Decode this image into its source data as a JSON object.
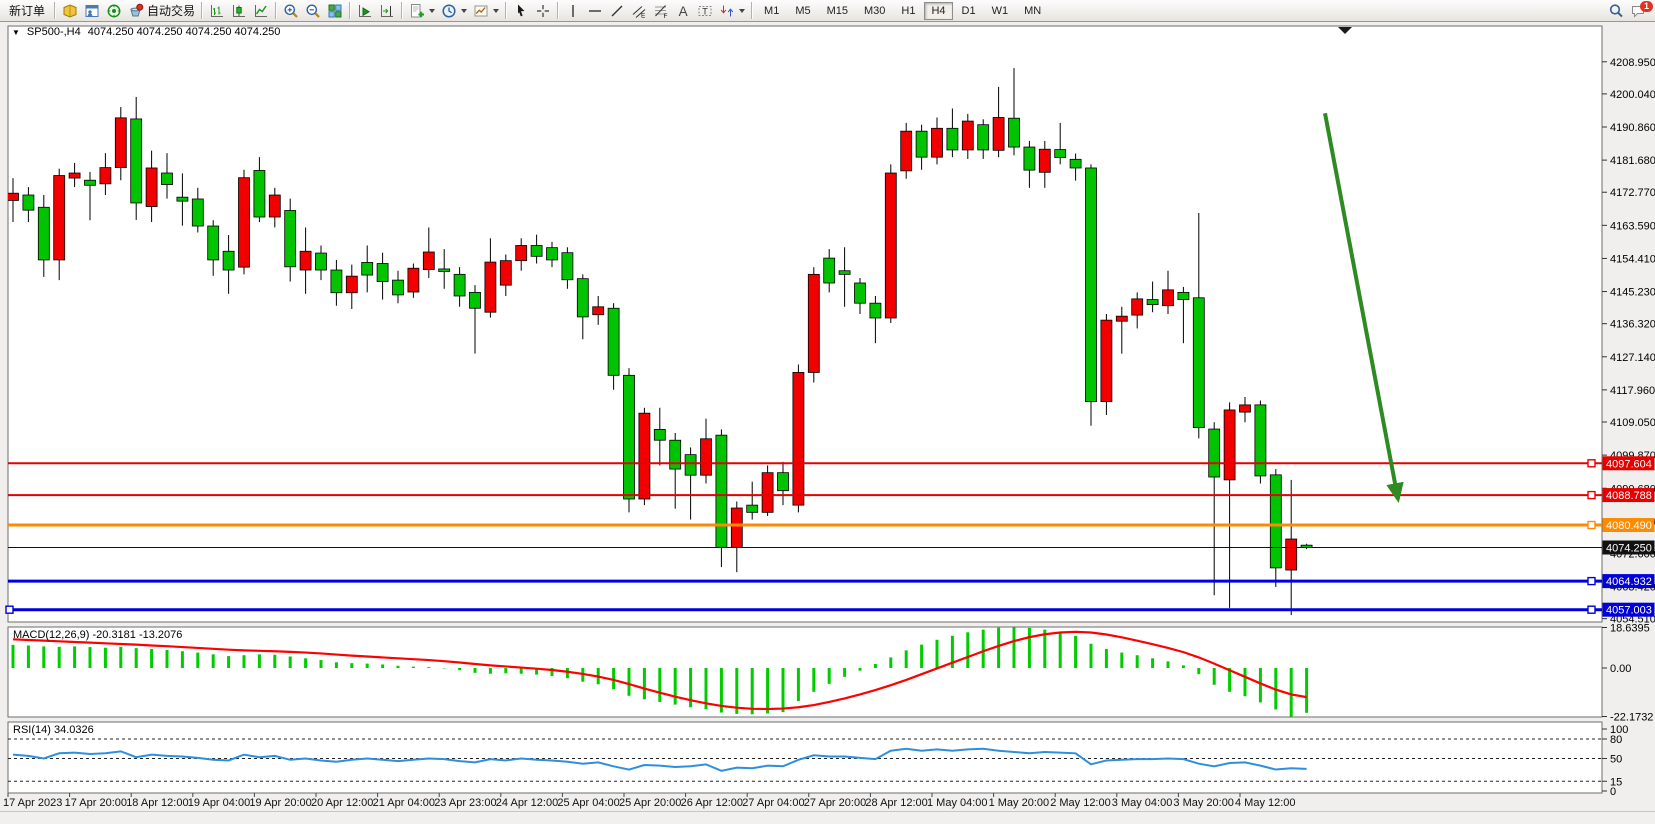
{
  "toolbar": {
    "groups": [
      {
        "items": [
          {
            "kind": "text",
            "name": "new-order-button",
            "label": "新订单"
          }
        ]
      },
      {
        "items": [
          {
            "kind": "icon",
            "name": "market-watch-icon"
          },
          {
            "kind": "icon",
            "name": "data-window-icon"
          },
          {
            "kind": "icon",
            "name": "navigator-icon"
          },
          {
            "kind": "icon-text",
            "name": "auto-trading-button",
            "icon": "auto-trading-icon",
            "label": "自动交易"
          }
        ]
      },
      {
        "items": [
          {
            "kind": "icon",
            "name": "bar-chart-icon"
          },
          {
            "kind": "icon",
            "name": "candlestick-chart-icon"
          },
          {
            "kind": "icon",
            "name": "line-chart-icon"
          }
        ]
      },
      {
        "items": [
          {
            "kind": "icon",
            "name": "zoom-in-icon"
          },
          {
            "kind": "icon",
            "name": "zoom-out-icon"
          },
          {
            "kind": "icon",
            "name": "tile-windows-icon"
          }
        ]
      },
      {
        "items": [
          {
            "kind": "icon",
            "name": "auto-scroll-icon"
          },
          {
            "kind": "icon",
            "name": "chart-shift-icon"
          }
        ]
      },
      {
        "items": [
          {
            "kind": "icon-caret",
            "name": "new-chart-button",
            "icon": "new-chart-icon"
          },
          {
            "kind": "icon-caret",
            "name": "profiles-button",
            "icon": "profiles-icon"
          },
          {
            "kind": "icon-caret",
            "name": "templates-button",
            "icon": "templates-icon"
          }
        ]
      },
      {
        "items": [
          {
            "kind": "icon",
            "name": "cursor-icon"
          },
          {
            "kind": "icon",
            "name": "crosshair-icon"
          }
        ]
      },
      {
        "items": [
          {
            "kind": "icon",
            "name": "vertical-line-icon"
          },
          {
            "kind": "icon",
            "name": "horizontal-line-icon"
          },
          {
            "kind": "icon",
            "name": "trendline-icon"
          },
          {
            "kind": "icon",
            "name": "equidistant-channel-icon"
          },
          {
            "kind": "icon",
            "name": "fibonacci-icon"
          },
          {
            "kind": "icon",
            "name": "text-icon"
          },
          {
            "kind": "icon",
            "name": "text-label-icon"
          },
          {
            "kind": "icon-caret",
            "name": "arrows-button",
            "icon": "arrow-objects-icon"
          }
        ]
      }
    ],
    "timeframes": [
      "M1",
      "M5",
      "M15",
      "M30",
      "H1",
      "H4",
      "D1",
      "W1",
      "MN"
    ],
    "active_timeframe": "H4",
    "right_items": [
      {
        "kind": "icon",
        "name": "search-icon"
      },
      {
        "kind": "icon-badge",
        "name": "chat-icon",
        "badge": "1"
      }
    ]
  },
  "chart": {
    "title_symbol": "SP500-,H4",
    "title_ohlc": "4074.250 4074.250 4074.250 4074.250"
  },
  "price_axis": {
    "ticks": [
      "4208.950",
      "4200.040",
      "4190.860",
      "4181.680",
      "4172.770",
      "4163.590",
      "4154.410",
      "4145.230",
      "4136.320",
      "4127.140",
      "4117.960",
      "4109.050",
      "4099.870",
      "4090.680",
      "4081.500",
      "4072.600",
      "4063.420",
      "4054.510"
    ]
  },
  "lines": [
    {
      "label": "4097.604",
      "value": 4097.604,
      "color": "#e60000",
      "width": 2,
      "marker": "right"
    },
    {
      "label": "4088.788",
      "value": 4088.788,
      "color": "#e60000",
      "width": 2,
      "marker": "right"
    },
    {
      "label": "4080.490",
      "value": 4080.49,
      "color": "#ff8a00",
      "width": 3,
      "marker": "right"
    },
    {
      "label": "4074.250",
      "value": 4074.25,
      "color": "#111111",
      "width": 1,
      "marker": "none"
    },
    {
      "label": "4064.932",
      "value": 4064.932,
      "color": "#0000dd",
      "width": 3,
      "marker": "right"
    },
    {
      "label": "4057.003",
      "value": 4057.003,
      "color": "#0000dd",
      "width": 3,
      "marker": "both"
    }
  ],
  "time_axis": {
    "labels": [
      "17 Apr 2023",
      "17 Apr 20:00",
      "18 Apr 12:00",
      "19 Apr 04:00",
      "19 Apr 20:00",
      "20 Apr 12:00",
      "21 Apr 04:00",
      "23 Apr 23:00",
      "24 Apr 12:00",
      "25 Apr 04:00",
      "25 Apr 20:00",
      "26 Apr 12:00",
      "27 Apr 04:00",
      "27 Apr 20:00",
      "28 Apr 12:00",
      "1 May 04:00",
      "1 May 20:00",
      "2 May 12:00",
      "3 May 04:00",
      "3 May 20:00",
      "4 May 12:00"
    ]
  },
  "chart_data": {
    "type": "candlestick",
    "symbol": "SP500-",
    "period": "H4",
    "bull_color": "#f20000",
    "bear_color": "#00c400",
    "ylim": [
      4053.5,
      4215.0
    ],
    "candles": [
      [
        4170.5,
        4176.7,
        4164.5,
        4172.5
      ],
      [
        4172.0,
        4174.2,
        4164.5,
        4167.8
      ],
      [
        4168.6,
        4172.0,
        4149.3,
        4154.0
      ],
      [
        4154.0,
        4179.3,
        4148.4,
        4177.4
      ],
      [
        4176.7,
        4180.9,
        4174.2,
        4178.1
      ],
      [
        4176.1,
        4178.4,
        4165.0,
        4174.7
      ],
      [
        4175.1,
        4183.6,
        4172.0,
        4179.6
      ],
      [
        4179.6,
        4196.4,
        4176.1,
        4193.4
      ],
      [
        4193.1,
        4199.2,
        4165.1,
        4169.8
      ],
      [
        4168.8,
        4184.3,
        4164.5,
        4179.5
      ],
      [
        4178.1,
        4183.6,
        4171.0,
        4174.9
      ],
      [
        4171.4,
        4178.0,
        4163.5,
        4170.3
      ],
      [
        4170.9,
        4174.0,
        4161.6,
        4163.4
      ],
      [
        4163.4,
        4165.0,
        4149.6,
        4154.0
      ],
      [
        4156.4,
        4160.9,
        4144.6,
        4151.2
      ],
      [
        4152.0,
        4179.0,
        4150.0,
        4176.8
      ],
      [
        4178.8,
        4182.5,
        4164.5,
        4165.9
      ],
      [
        4165.9,
        4174.0,
        4163.0,
        4172.0
      ],
      [
        4167.7,
        4171.0,
        4148.0,
        4152.1
      ],
      [
        4151.2,
        4163.0,
        4144.6,
        4156.4
      ],
      [
        4155.9,
        4158.0,
        4148.4,
        4151.2
      ],
      [
        4151.2,
        4154.0,
        4141.3,
        4144.9
      ],
      [
        4144.9,
        4152.7,
        4140.4,
        4149.5
      ],
      [
        4153.3,
        4158.0,
        4145.0,
        4149.8
      ],
      [
        4153.0,
        4156.0,
        4143.0,
        4148.0
      ],
      [
        4148.4,
        4151.0,
        4142.0,
        4144.3
      ],
      [
        4145.1,
        4153.0,
        4143.5,
        4151.7
      ],
      [
        4151.3,
        4163.0,
        4149.0,
        4156.2
      ],
      [
        4151.5,
        4157.0,
        4146.0,
        4150.8
      ],
      [
        4150.0,
        4152.0,
        4141.0,
        4144.0
      ],
      [
        4145.0,
        4147.0,
        4128.0,
        4140.6
      ],
      [
        4139.5,
        4160.0,
        4138.0,
        4153.4
      ],
      [
        4147.0,
        4155.5,
        4144.0,
        4153.8
      ],
      [
        4153.8,
        4160.0,
        4151.0,
        4158.0
      ],
      [
        4158.0,
        4161.0,
        4153.0,
        4155.0
      ],
      [
        4157.4,
        4159.0,
        4152.0,
        4154.0
      ],
      [
        4156.0,
        4157.5,
        4146.0,
        4148.5
      ],
      [
        4148.8,
        4150.0,
        4132.0,
        4138.2
      ],
      [
        4138.8,
        4144.0,
        4136.0,
        4141.0
      ],
      [
        4140.6,
        4142.0,
        4118.0,
        4122.0
      ],
      [
        4122.0,
        4124.0,
        4084.0,
        4087.7
      ],
      [
        4087.7,
        4113.0,
        4086.0,
        4111.5
      ],
      [
        4107.0,
        4113.0,
        4097.0,
        4104.0
      ],
      [
        4104.0,
        4106.0,
        4085.0,
        4096.0
      ],
      [
        4100.0,
        4102.0,
        4082.0,
        4094.3
      ],
      [
        4094.3,
        4110.0,
        4092.0,
        4104.4
      ],
      [
        4105.4,
        4107.0,
        4068.8,
        4074.3
      ],
      [
        4074.3,
        4087.0,
        4067.4,
        4085.2
      ],
      [
        4086.0,
        4092.5,
        4082.0,
        4084.0
      ],
      [
        4084.0,
        4097.0,
        4083.0,
        4095.0
      ],
      [
        4095.0,
        4098.0,
        4086.0,
        4090.0
      ],
      [
        4086.0,
        4125.0,
        4084.0,
        4122.8
      ],
      [
        4122.8,
        4152.0,
        4120.0,
        4150.0
      ],
      [
        4154.5,
        4157.0,
        4145.0,
        4147.6
      ],
      [
        4151.0,
        4157.5,
        4141.0,
        4150.0
      ],
      [
        4147.6,
        4149.0,
        4139.0,
        4142.0
      ],
      [
        4142.0,
        4144.0,
        4130.9,
        4137.9
      ],
      [
        4137.9,
        4180.5,
        4136.5,
        4178.1
      ],
      [
        4178.7,
        4192.0,
        4176.5,
        4189.7
      ],
      [
        4189.7,
        4191.5,
        4179.0,
        4182.5
      ],
      [
        4182.5,
        4193.5,
        4180.5,
        4190.5
      ],
      [
        4190.5,
        4196.0,
        4182.5,
        4184.5
      ],
      [
        4184.5,
        4194.5,
        4182.0,
        4192.5
      ],
      [
        4191.5,
        4193.0,
        4182.0,
        4184.5
      ],
      [
        4184.4,
        4202.0,
        4182.5,
        4193.5
      ],
      [
        4193.3,
        4207.2,
        4183.0,
        4185.3
      ],
      [
        4185.3,
        4187.0,
        4174.0,
        4178.9
      ],
      [
        4178.3,
        4187.0,
        4174.0,
        4184.7
      ],
      [
        4184.6,
        4192.0,
        4180.5,
        4182.4
      ],
      [
        4181.9,
        4183.5,
        4176.0,
        4179.5
      ],
      [
        4179.5,
        4180.5,
        4108.0,
        4114.7
      ],
      [
        4114.7,
        4139.0,
        4111.0,
        4137.3
      ],
      [
        4137.0,
        4141.0,
        4128.0,
        4138.4
      ],
      [
        4138.7,
        4145.0,
        4135.0,
        4143.2
      ],
      [
        4143.0,
        4148.0,
        4139.5,
        4141.6
      ],
      [
        4141.3,
        4151.0,
        4139.0,
        4145.7
      ],
      [
        4145.0,
        4146.5,
        4130.9,
        4143.0
      ],
      [
        4143.5,
        4167.0,
        4104.5,
        4107.5
      ],
      [
        4107.1,
        4109.0,
        4061.0,
        4093.8
      ],
      [
        4093.0,
        4114.5,
        4057.5,
        4112.4
      ],
      [
        4111.8,
        4116.0,
        4109.0,
        4113.8
      ],
      [
        4113.8,
        4115.0,
        4092.0,
        4094.1
      ],
      [
        4094.4,
        4096.0,
        4063.3,
        4068.6
      ],
      [
        4068.0,
        4093.0,
        4055.5,
        4076.6
      ],
      [
        4074.9,
        4075.3,
        4073.8,
        4074.25
      ]
    ],
    "indicators": [
      {
        "name": "MACD",
        "label": "MACD(12,26,9)",
        "values_label": "-20.3181 -13.2076",
        "range": [
          -22.1732,
          18.6395
        ],
        "axis_ticks": [
          "18.6395",
          "0.00",
          "-22.1732"
        ],
        "histogram": [
          10.5,
          10.2,
          9.8,
          9.6,
          9.8,
          9.5,
          9.2,
          9.6,
          9.0,
          8.6,
          8.2,
          7.6,
          7.0,
          6.2,
          5.4,
          5.8,
          6.2,
          6.0,
          5.2,
          4.4,
          3.6,
          2.6,
          2.2,
          2.0,
          1.6,
          1.0,
          0.6,
          0.4,
          -0.2,
          -1.0,
          -2.2,
          -2.6,
          -2.4,
          -2.6,
          -3.0,
          -3.6,
          -4.6,
          -6.2,
          -7.4,
          -9.6,
          -12.6,
          -14.2,
          -15.4,
          -16.6,
          -17.8,
          -18.6,
          -20.2,
          -20.8,
          -21.0,
          -20.6,
          -20.0,
          -15.0,
          -10.8,
          -7.2,
          -4.0,
          -1.2,
          1.8,
          4.8,
          8.0,
          10.6,
          12.8,
          14.6,
          16.2,
          17.4,
          18.3,
          18.6,
          18.2,
          17.4,
          16.2,
          14.6,
          11.0,
          8.6,
          7.0,
          5.8,
          4.4,
          3.0,
          1.2,
          -2.8,
          -7.6,
          -10.8,
          -12.8,
          -15.6,
          -18.8,
          -22.1732,
          -20.3181
        ],
        "signal": [
          13.0,
          12.7,
          12.4,
          12.1,
          11.8,
          11.5,
          11.2,
          10.9,
          10.6,
          10.2,
          9.9,
          9.5,
          9.1,
          8.7,
          8.3,
          8.0,
          7.8,
          7.6,
          7.3,
          7.0,
          6.6,
          6.1,
          5.6,
          5.2,
          4.8,
          4.4,
          4.0,
          3.6,
          3.1,
          2.5,
          1.8,
          1.2,
          0.7,
          0.2,
          -0.3,
          -0.9,
          -1.7,
          -2.7,
          -3.9,
          -5.4,
          -7.3,
          -9.3,
          -11.2,
          -13.0,
          -14.6,
          -16.0,
          -17.2,
          -18.0,
          -18.5,
          -18.6,
          -18.4,
          -17.8,
          -16.8,
          -15.4,
          -13.8,
          -12.0,
          -10.0,
          -7.8,
          -5.4,
          -2.8,
          -0.2,
          2.4,
          5.0,
          7.6,
          10.0,
          12.2,
          14.0,
          15.3,
          16.1,
          16.4,
          16.1,
          15.2,
          13.9,
          12.4,
          10.8,
          9.1,
          7.2,
          4.8,
          2.0,
          -1.0,
          -4.0,
          -7.0,
          -9.8,
          -12.0,
          -13.2076
        ],
        "histogram_color": "#00cc00",
        "signal_color": "#ff0000"
      },
      {
        "name": "RSI",
        "label": "RSI(14)",
        "value_label": "34.0326",
        "levels": [
          80,
          50,
          15
        ],
        "axis_ticks": [
          "100",
          "80",
          "50",
          "15",
          "0"
        ],
        "values": [
          56,
          54,
          50,
          58,
          59,
          57,
          58,
          61,
          52,
          56,
          54,
          53,
          51,
          48,
          47,
          56,
          52,
          54,
          48,
          50,
          47,
          45,
          48,
          50,
          48,
          46,
          48,
          50,
          49,
          46,
          44,
          49,
          47,
          50,
          48,
          47,
          45,
          42,
          44,
          38,
          33,
          40,
          39,
          37,
          38,
          41,
          31,
          36,
          35,
          39,
          38,
          48,
          55,
          53,
          53,
          51,
          49,
          62,
          65,
          62,
          64,
          62,
          64,
          65,
          62,
          60,
          58,
          60,
          59,
          58,
          41,
          47,
          48,
          49,
          49,
          50,
          49,
          42,
          38,
          43,
          44,
          39,
          33,
          35,
          34.0326
        ],
        "line_color": "#2e8fdf"
      }
    ],
    "annotations": [
      {
        "type": "arrow",
        "name": "trend-arrow",
        "color": "#2e8b22",
        "from_price": 4172.5,
        "to_price": 4086.0
      }
    ]
  }
}
